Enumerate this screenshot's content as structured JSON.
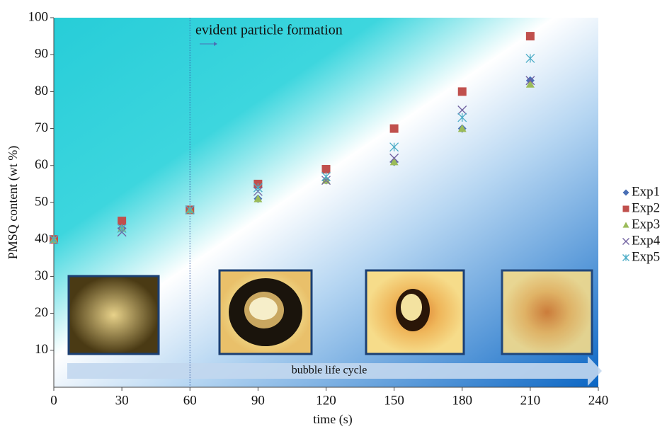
{
  "chart_data": {
    "type": "scatter",
    "x_label": "time (s)",
    "y_label": "PMSQ content (wt %)",
    "x": [
      0,
      30,
      60,
      90,
      120,
      150,
      180,
      210
    ],
    "series": [
      {
        "name": "Exp1",
        "color": "#4a6fb5",
        "marker": "diamond",
        "values": [
          40,
          43,
          48,
          51,
          56,
          61,
          70,
          83
        ]
      },
      {
        "name": "Exp2",
        "color": "#c0504d",
        "marker": "square",
        "values": [
          40,
          45,
          48,
          55,
          59,
          70,
          80,
          95
        ]
      },
      {
        "name": "Exp3",
        "color": "#9bbb59",
        "marker": "triangle",
        "values": [
          40,
          43,
          48,
          51,
          56,
          61,
          70,
          82
        ]
      },
      {
        "name": "Exp4",
        "color": "#7060a0",
        "marker": "x",
        "values": [
          40,
          42,
          48,
          53,
          56,
          62,
          75,
          83
        ]
      },
      {
        "name": "Exp5",
        "color": "#4bacc6",
        "marker": "star",
        "values": [
          40,
          43,
          48,
          54,
          57,
          65,
          73,
          89
        ]
      }
    ],
    "xlim": [
      0,
      240
    ],
    "xticks": [
      0,
      30,
      60,
      90,
      120,
      150,
      180,
      210,
      240
    ],
    "ylim": [
      0,
      100
    ],
    "yticks": [
      10,
      20,
      30,
      40,
      50,
      60,
      70,
      80,
      90,
      100
    ],
    "reference_line_x": 60,
    "annotations": [
      "evident particle formation",
      "bubble life cycle"
    ],
    "legend": "right"
  }
}
